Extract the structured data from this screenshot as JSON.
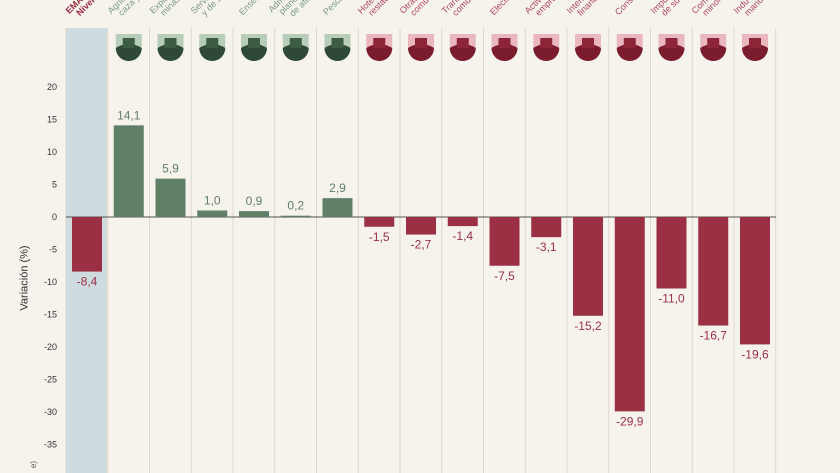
{
  "chart_data": {
    "type": "bar",
    "ylabel": "Variación (%)",
    "ylim": [
      -38,
      22
    ],
    "yticks": [
      20,
      15,
      10,
      5,
      0,
      -5,
      -10,
      -15,
      -20,
      -25,
      -30,
      -35
    ],
    "grid": "vertical column separators",
    "categories": [
      [
        "EMAE",
        "Nivel g"
      ],
      [
        "Agric",
        "caza y"
      ],
      [
        "Explo",
        "minas y"
      ],
      [
        "Servi",
        "y de sa"
      ],
      [
        "Enseña"
      ],
      [
        "Adm",
        "planea",
        "de afilia"
      ],
      [
        "Pesca"
      ],
      [
        "Hotel",
        "restau"
      ],
      [
        "Otras",
        "comu"
      ],
      [
        "Trans",
        "comun"
      ],
      [
        "Electric"
      ],
      [
        "Activ",
        "empres"
      ],
      [
        "Interm",
        "financi"
      ],
      [
        "Constr"
      ],
      [
        "Impu",
        "de sub"
      ],
      [
        "Com",
        "minor"
      ],
      [
        "Indu",
        "manuf"
      ]
    ],
    "values": [
      -8.4,
      14.1,
      5.9,
      1.0,
      0.9,
      0.2,
      2.9,
      -1.5,
      -2.7,
      -1.4,
      -7.5,
      -3.1,
      -15.2,
      -29.9,
      -11.0,
      -16.7,
      -19.6
    ],
    "value_labels": [
      "-8,4",
      "14,1",
      "5,9",
      "1,0",
      "0,9",
      "0,2",
      "2,9",
      "-1,5",
      "-2,7",
      "-1,4",
      "-7,5",
      "-3,1",
      "-15,2",
      "-29,9",
      "-11,0",
      "-16,7",
      "-19,6"
    ],
    "icons": [
      "none",
      "agriculture-icon",
      "oil-pump-icon",
      "health-services-icon",
      "education-icon",
      "government-building-icon",
      "fishing-icon",
      "hotel-icon",
      "theatre-masks-icon",
      "transport-icon",
      "electricity-tower-icon",
      "business-icon",
      "bank-icon",
      "construction-truck-icon",
      "taxes-icon",
      "shopping-cart-icon",
      "gears-icon"
    ],
    "colors": {
      "positive": "#5f7f66",
      "negative": "#9b2f44",
      "emae_band": "#cfdcdf",
      "positive_icon_bg": "#b8cdb8",
      "negative_icon_bg": "#eab7bf"
    }
  },
  "footer_fragment": "e)"
}
